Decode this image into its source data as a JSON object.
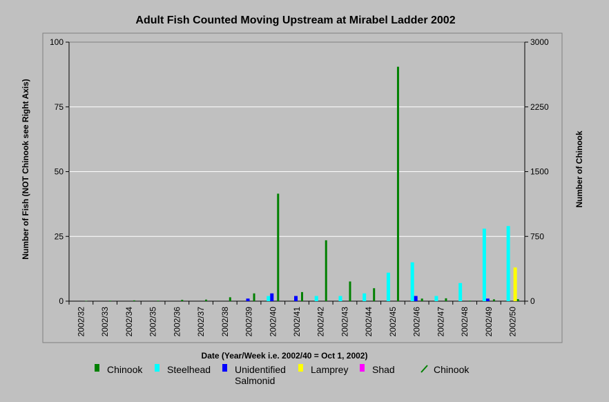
{
  "chart_data": {
    "type": "bar",
    "title": "Adult Fish Counted Moving Upstream at Mirabel Ladder 2002",
    "xlabel": "Date (Year/Week i.e. 2002/40 = Oct 1, 2002)",
    "ylabel": "Number of Fish (NOT Chinook see Right Axis)",
    "ylabel_right": "Number of Chinook",
    "ylim": [
      0,
      100
    ],
    "ylim_right": [
      0,
      3000
    ],
    "yticks": [
      "0",
      "25",
      "50",
      "75",
      "100"
    ],
    "yticks_right": [
      "0",
      "750",
      "1500",
      "2250",
      "3000"
    ],
    "grid": true,
    "legend_position": "bottom",
    "categories": [
      "2002/32",
      "2002/33",
      "2002/34",
      "2002/35",
      "2002/36",
      "2002/37",
      "2002/38",
      "2002/39",
      "2002/40",
      "2002/41",
      "2002/42",
      "2002/43",
      "2002/44",
      "2002/45",
      "2002/46",
      "2002/47",
      "2002/48",
      "2002/49",
      "2002/50"
    ],
    "series": [
      {
        "name": "Chinook",
        "axis": "right",
        "color": "#008000",
        "values": [
          3,
          6,
          9,
          6,
          15,
          18,
          45,
          90,
          1245,
          105,
          705,
          228,
          150,
          2715,
          30,
          33,
          6,
          21,
          24
        ]
      },
      {
        "name": "Steelhead",
        "axis": "left",
        "color": "#00ffff",
        "values": [
          0,
          0,
          0,
          0,
          0,
          0,
          0,
          0,
          2,
          0,
          2,
          2,
          3,
          11,
          15,
          2,
          7,
          28,
          29
        ]
      },
      {
        "name": "Unidentified Salmonid",
        "axis": "left",
        "color": "#0000ff",
        "values": [
          0,
          0,
          0,
          0,
          0,
          0,
          0,
          1,
          3,
          2,
          0,
          0,
          0,
          0,
          2,
          0,
          0,
          1,
          0
        ]
      },
      {
        "name": "Lamprey",
        "axis": "left",
        "color": "#ffff00",
        "values": [
          0,
          0,
          0,
          0,
          0,
          0,
          0,
          0,
          0,
          0,
          0,
          0,
          0,
          0,
          0,
          0,
          0,
          0,
          13
        ]
      },
      {
        "name": "Shad",
        "axis": "left",
        "color": "#ff00ff",
        "values": [
          0,
          0,
          0,
          0,
          0,
          0,
          0,
          0,
          0,
          0,
          0,
          0,
          0,
          0,
          0,
          0,
          0,
          0,
          0
        ]
      }
    ],
    "legend": [
      {
        "label": "Chinook",
        "color": "#008000",
        "kind": "bar"
      },
      {
        "label": "Steelhead",
        "color": "#00ffff",
        "kind": "bar"
      },
      {
        "label": "Unidentified Salmonid",
        "color": "#0000ff",
        "kind": "bar"
      },
      {
        "label": "Lamprey",
        "color": "#ffff00",
        "kind": "bar"
      },
      {
        "label": "Shad",
        "color": "#ff00ff",
        "kind": "bar"
      },
      {
        "label": "Chinook",
        "color": "#008000",
        "kind": "line"
      }
    ]
  }
}
